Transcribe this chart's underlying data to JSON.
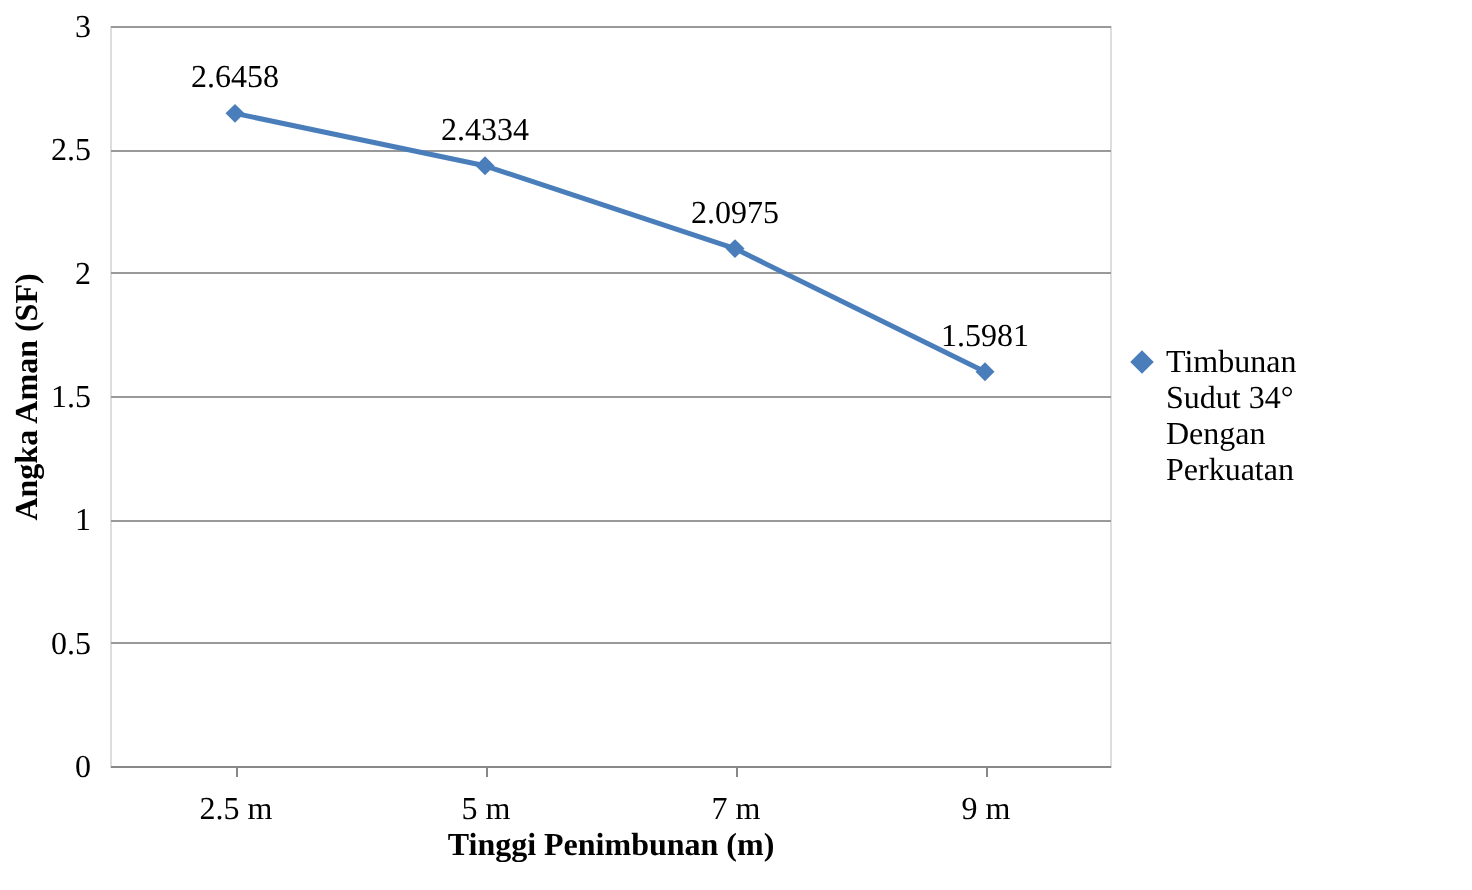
{
  "chart_data": {
    "type": "line",
    "xlabel": "Tinggi Penimbunan (m)",
    "ylabel": "Angka Aman (SF)",
    "categories": [
      "2.5 m",
      "5 m",
      "7 m",
      "9 m"
    ],
    "series": [
      {
        "name": "Timbunan Sudut 34° Dengan Perkuatan",
        "color": "#4a7ebb",
        "values": [
          2.6458,
          2.4334,
          2.0975,
          1.5981
        ]
      }
    ],
    "ylim": [
      0,
      3
    ],
    "yticks": [
      0,
      0.5,
      1,
      1.5,
      2,
      2.5,
      3
    ],
    "grid": "y",
    "legend": "right",
    "marker": "diamond",
    "line_style": "solid",
    "data_labels": true
  }
}
